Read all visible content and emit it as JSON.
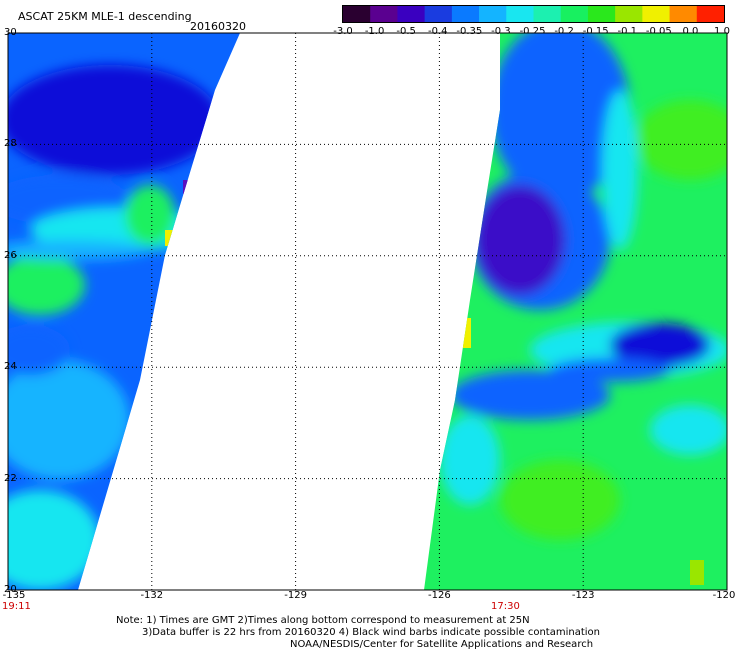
{
  "title": "ASCAT 25KM MLE-1 descending",
  "date": "20160320",
  "colorbar": {
    "colors": [
      "#2a0030",
      "#5a0090",
      "#3a00c0",
      "#1a3ce0",
      "#0a7aff",
      "#14b4ff",
      "#19e6f0",
      "#1cf0b0",
      "#18f060",
      "#2ae81c",
      "#9ae600",
      "#f0f000",
      "#ff8a00",
      "#ff2000"
    ],
    "tick_labels": [
      "-3.0",
      "-1.0",
      "-0.5",
      "-0.4",
      "-0.35",
      "-0.3",
      "-0.25",
      "-0.2",
      "-0.15",
      "-0.1",
      "-0.05",
      "0.0",
      "1.0"
    ]
  },
  "axes": {
    "lat_labels": [
      "30",
      "26",
      "28",
      "24",
      "22",
      "20"
    ],
    "lat_values": [
      30,
      26,
      28,
      24,
      22,
      20
    ],
    "lon_labels": [
      "-135",
      "-132",
      "-129",
      "-126",
      "-123",
      "-120"
    ],
    "lon_values": [
      -135,
      -132,
      -129,
      -126,
      -123,
      -120
    ]
  },
  "times": {
    "left": "19:11",
    "right": "17:30"
  },
  "notes": {
    "line1": "Note: 1) Times are GMT 2)Times along bottom correspond to measurement at 25N",
    "line2": "3)Data buffer is 22 hrs from 20160320 4) Black wind barbs indicate possible contamination",
    "line3": "NOAA/NESDIS/Center for Satellite Applications and Research"
  },
  "swath_colors": {
    "deep_blue": "#1010d8",
    "mid_blue": "#0a64ff",
    "light_blue": "#14b4ff",
    "cyan": "#19e6f0",
    "green_cyan": "#1cf0a0",
    "green": "#1ef060",
    "bright_green": "#40ee20",
    "yellow": "#f0f000",
    "purple": "#5a10c0"
  }
}
